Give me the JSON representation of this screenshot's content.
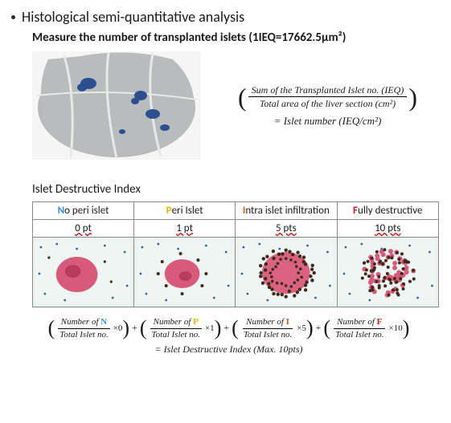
{
  "title": "Histological semi-quantitative analysis",
  "subtitle": "Measure the number of transplanted islets (1IEQ=17662.5μm²)",
  "formula1": {
    "num": "Sum of the Transplanted  Islet no. (IEQ)",
    "den": "Total area of the liver section (cm²)",
    "result": "= Islet  number (IEQ/cm²)"
  },
  "section2": "Islet Destructive Index",
  "table": {
    "cols": [
      {
        "first": "N",
        "rest": "o peri islet",
        "first_color": "#3b8fd6",
        "pts": "0 pt"
      },
      {
        "first": "P",
        "rest": "eri Islet",
        "first_color": "#e6b800",
        "pts": "1 pt"
      },
      {
        "first": "I",
        "rest": "ntra islet infiltration",
        "first_color": "#d85c0e",
        "pts": "5 pts"
      },
      {
        "first": "F",
        "rest": "ully destructive",
        "first_color": "#c81e1e",
        "pts": "10 pts"
      }
    ]
  },
  "formula2": {
    "terms": [
      {
        "letter": "N",
        "class": "c-B",
        "mult": "×0"
      },
      {
        "letter": "P",
        "class": "c-Y",
        "mult": "×1"
      },
      {
        "letter": "I",
        "class": "c-O",
        "mult": "×5"
      },
      {
        "letter": "F",
        "class": "c-R",
        "mult": "×10"
      }
    ],
    "num_prefix": "Number of ",
    "den": "Total Islet no.",
    "result": "= Islet Destructive Index (Max. 10pts)"
  },
  "colors": {
    "border": "#8a8a8a",
    "blue": "#3b8fd6",
    "yellow": "#e6b800",
    "orange": "#d85c0e",
    "red": "#c81e1e"
  },
  "thumb_colors": {
    "bg": "#e8f2ef",
    "tissue": "#f3f7f5",
    "pink": "#d85a7a",
    "pink_dark": "#b63e5c",
    "brown": "#3d2a1a",
    "blue_dot": "#2b61a8"
  }
}
